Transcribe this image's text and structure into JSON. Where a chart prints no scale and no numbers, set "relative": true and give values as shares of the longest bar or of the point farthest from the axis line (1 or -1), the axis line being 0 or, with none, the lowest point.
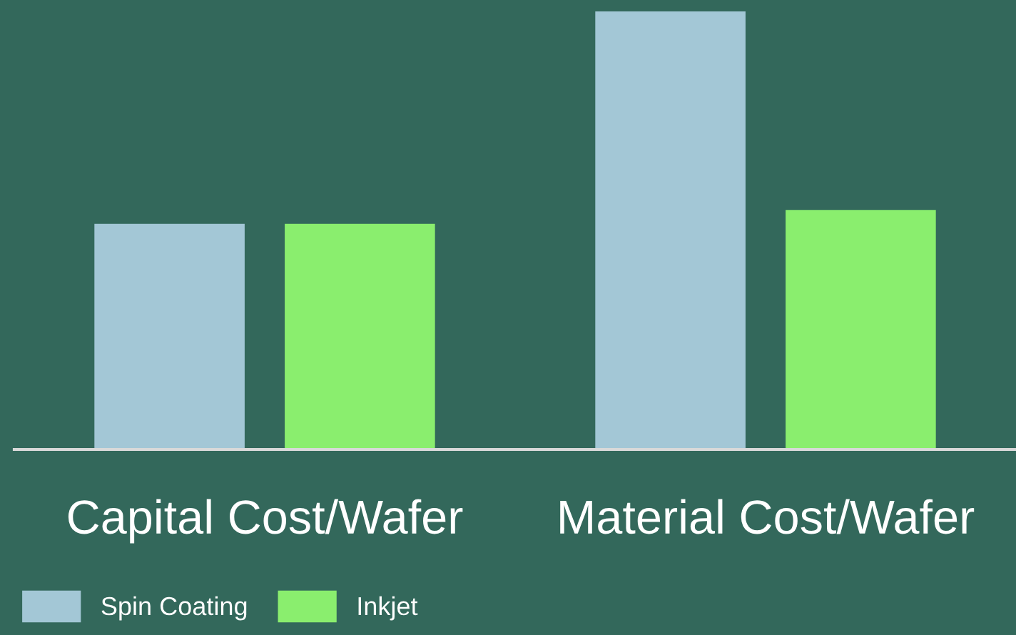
{
  "chart_data": {
    "type": "bar",
    "relative": true,
    "categories": [
      "Capital Cost/Wafer",
      "Material Cost/Wafer"
    ],
    "series": [
      {
        "name": "Spin Coating",
        "color": "#a3c7d6",
        "values": [
          0.515,
          1
        ]
      },
      {
        "name": "Inkjet",
        "color": "#8aee6e",
        "values": [
          0.515,
          0.547
        ]
      }
    ],
    "legend": "bottom left",
    "grid": false
  }
}
